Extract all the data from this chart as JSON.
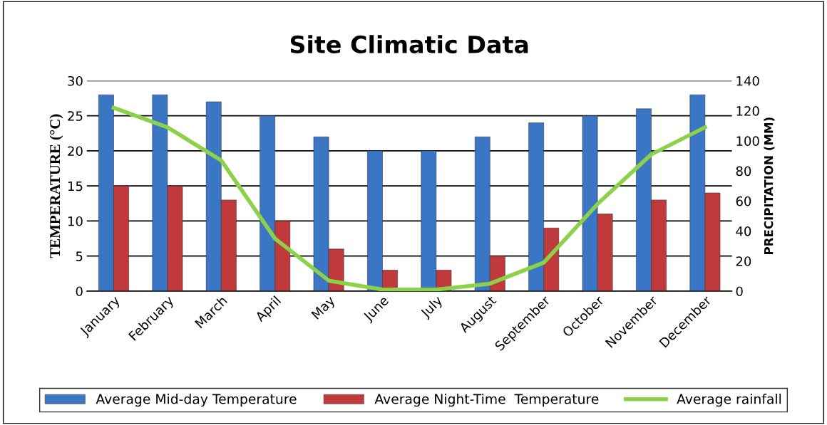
{
  "chart_data": {
    "type": "bar",
    "title": "Site Climatic Data",
    "ylabel": "TEMPERATURE (°C)",
    "y2label": "PRECIPITATION (MM)",
    "categories": [
      "January",
      "February",
      "March",
      "April",
      "May",
      "June",
      "July",
      "August",
      "September",
      "October",
      "November",
      "December"
    ],
    "series": [
      {
        "name": "Average Mid-day Temperature",
        "color": "#3a76c4",
        "values": [
          28,
          28,
          27,
          25,
          22,
          20,
          20,
          22,
          24,
          25,
          26,
          28
        ]
      },
      {
        "name": "Average Night-Time  Temperature",
        "color": "#c0393b",
        "values": [
          15,
          15,
          13,
          10,
          6,
          3,
          3,
          5,
          9,
          11,
          13,
          14
        ]
      },
      {
        "name": "Average rainfall",
        "type": "line",
        "axis": "y2",
        "color": "#8cd14a",
        "values": [
          122,
          109,
          87,
          35,
          7,
          1,
          1,
          5,
          19,
          58,
          91,
          109
        ]
      }
    ],
    "ylim": [
      0,
      30
    ],
    "yticks": [
      0,
      5,
      10,
      15,
      20,
      25,
      30
    ],
    "y2lim": [
      0,
      140
    ],
    "y2ticks": [
      0,
      20,
      40,
      60,
      80,
      100,
      120,
      140
    ],
    "grid": "y",
    "legend": "bottom",
    "marker": "none",
    "line_style": "solid"
  }
}
